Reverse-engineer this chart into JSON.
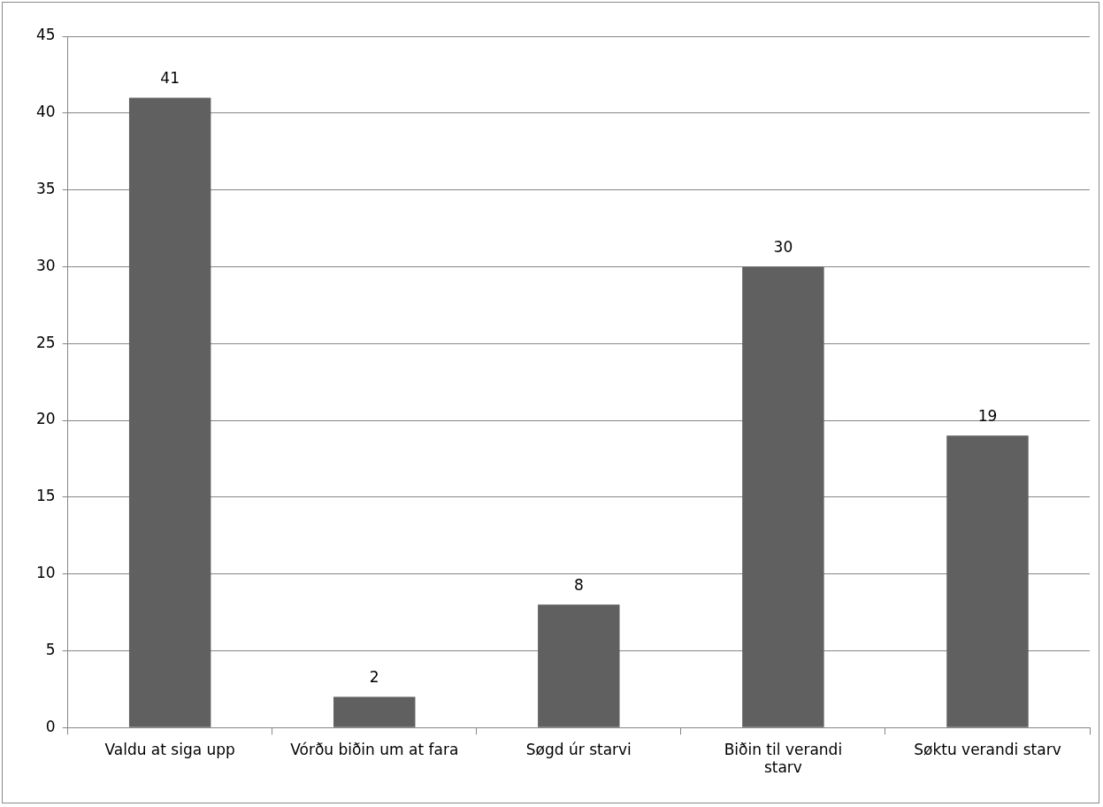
{
  "chart_data": {
    "type": "bar",
    "categories": [
      "Valdu at siga upp",
      "Vórðu biðin um at fara",
      "Søgd úr starvi",
      "Biðin til verandi starv",
      "Søktu verandi starv"
    ],
    "values": [
      41,
      2,
      8,
      30,
      19
    ],
    "color": "#606060",
    "ylim": [
      0,
      45
    ],
    "yticks": [
      0,
      5,
      10,
      15,
      20,
      25,
      30,
      35,
      40,
      45
    ],
    "grid": "y",
    "data_labels": true,
    "legend": false
  }
}
